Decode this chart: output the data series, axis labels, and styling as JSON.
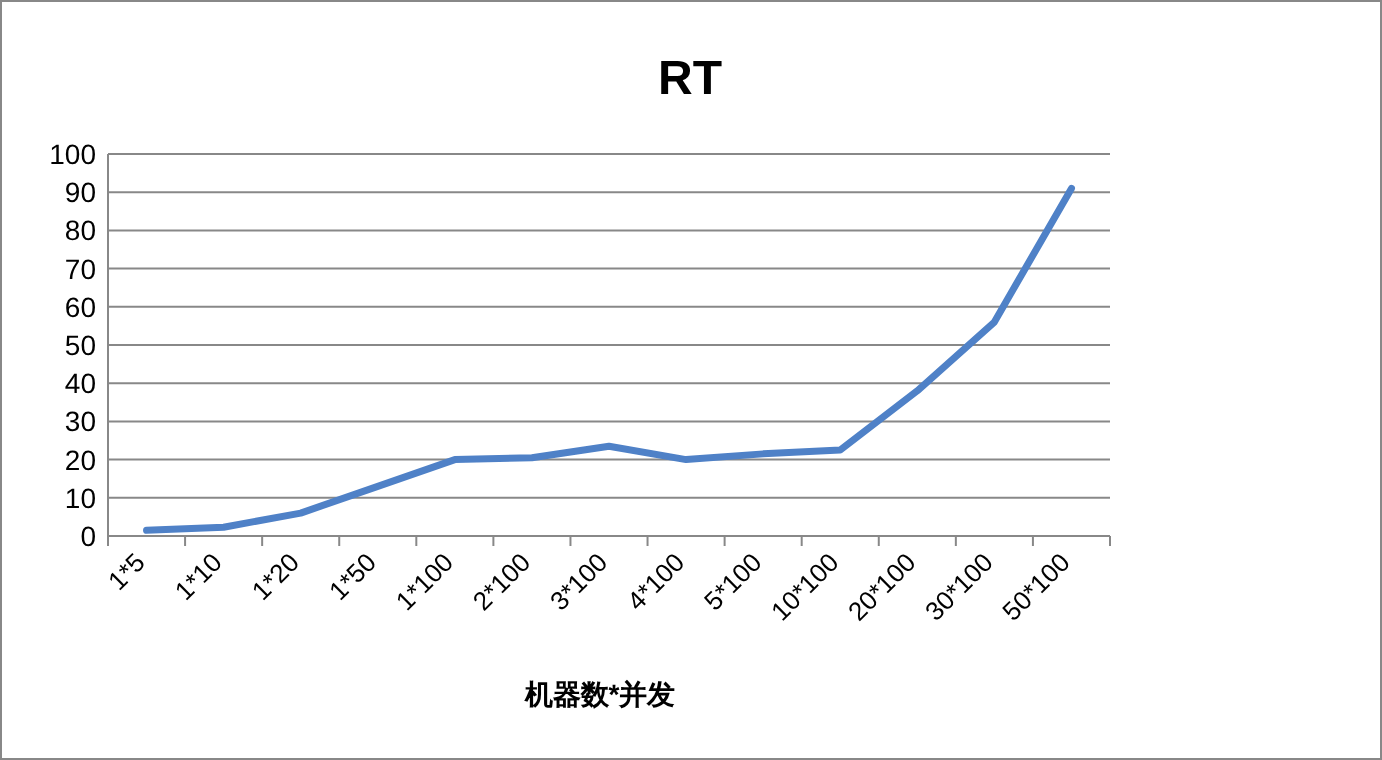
{
  "chart_data": {
    "type": "line",
    "title": "RT",
    "xlabel": "机器数*并发",
    "categories": [
      "1*5",
      "1*10",
      "1*20",
      "1*50",
      "1*100",
      "2*100",
      "3*100",
      "4*100",
      "5*100",
      "10*100",
      "20*100",
      "30*100",
      "50*100"
    ],
    "series": [
      {
        "color": "#4f81c7",
        "values": [
          1.5,
          2.3,
          6,
          13,
          20,
          20.5,
          23.5,
          20,
          21.5,
          22.5,
          38,
          56,
          91
        ]
      }
    ],
    "ylim": [
      0,
      100
    ],
    "yticks": [
      0,
      10,
      20,
      30,
      40,
      50,
      60,
      70,
      80,
      90,
      100
    ],
    "grid": "y",
    "marker": "none",
    "line_style": "solid"
  }
}
